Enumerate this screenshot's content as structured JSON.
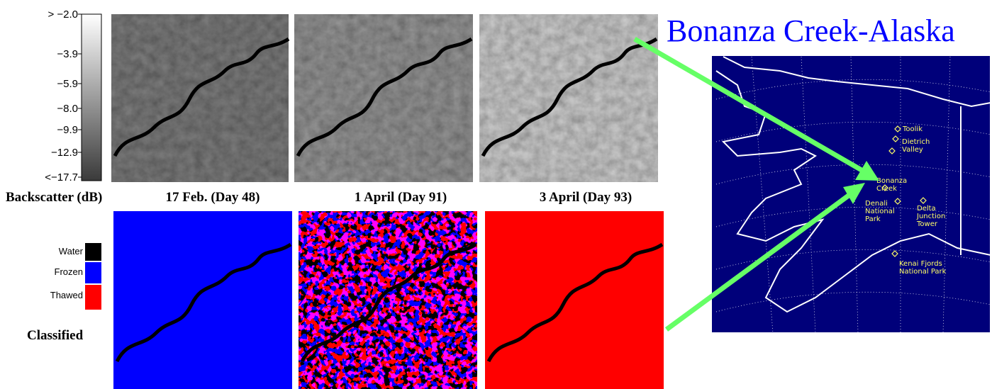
{
  "colorbar": {
    "title": "Backscatter (dB)",
    "labels": [
      "> −2.0",
      "−3.9",
      "−5.9",
      "−8.0",
      "−9.9",
      "−12.9",
      "<−17.7"
    ]
  },
  "panels": [
    "17 Feb. (Day 48)",
    "1 April (Day 91)",
    "3 April (Day 93)"
  ],
  "classified_label": "Classified",
  "legend": [
    "Water",
    "Frozen",
    "Thawed"
  ],
  "title": "Bonanza Creek-Alaska",
  "map": {
    "sites": [
      {
        "lines": [
          "Toolik"
        ]
      },
      {
        "lines": [
          "Dietrich",
          "Valley"
        ]
      },
      {
        "lines": [
          "Bonanza",
          "Creek"
        ]
      },
      {
        "lines": [
          "Denali",
          "National",
          "Park"
        ]
      },
      {
        "lines": [
          "Delta",
          "Junction",
          "Tower"
        ]
      },
      {
        "lines": [
          "Kenai Fjords",
          "National Park"
        ]
      }
    ]
  }
}
